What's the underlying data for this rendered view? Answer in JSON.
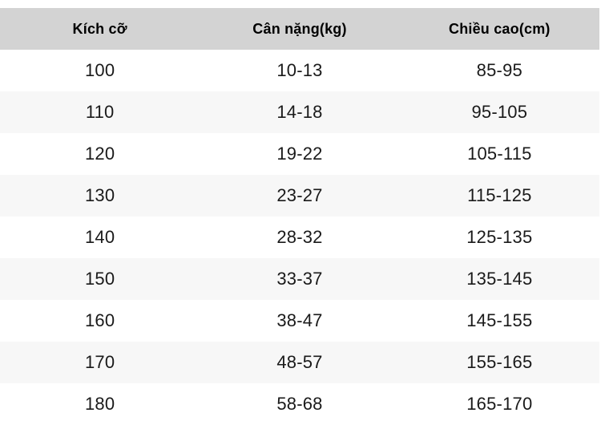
{
  "chart_data": {
    "type": "table",
    "title": "",
    "columns": [
      "Kích cỡ",
      "Cân nặng(kg)",
      "Chiều cao(cm)"
    ],
    "rows": [
      [
        "100",
        "10-13",
        "85-95"
      ],
      [
        "110",
        "14-18",
        "95-105"
      ],
      [
        "120",
        "19-22",
        "105-115"
      ],
      [
        "130",
        "23-27",
        "115-125"
      ],
      [
        "140",
        "28-32",
        "125-135"
      ],
      [
        "150",
        "33-37",
        "135-145"
      ],
      [
        "160",
        "38-47",
        "145-155"
      ],
      [
        "170",
        "48-57",
        "155-165"
      ],
      [
        "180",
        "58-68",
        "165-170"
      ]
    ],
    "layout": {
      "striped": true,
      "header_bg": "#d3d3d3",
      "stripe_bg": "#f7f7f7",
      "row_bg": "#ffffff",
      "header_text_color": "#000000",
      "text_color": "#1a1a1a",
      "column_alignment": "center",
      "grid_lines": false
    }
  }
}
